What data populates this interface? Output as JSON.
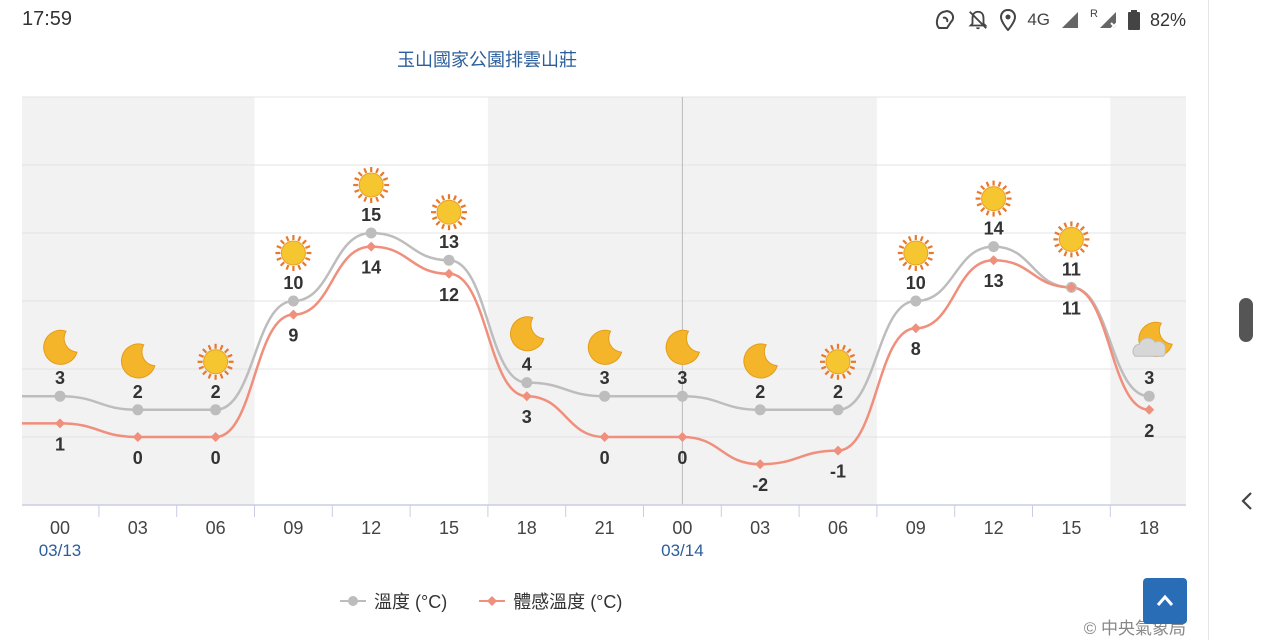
{
  "status_bar": {
    "time": "17:59",
    "network": "4G",
    "roaming": "R",
    "battery": "82%",
    "icons": [
      "nfc-icon",
      "notifications-off-icon",
      "location-icon",
      "signal-icon",
      "roaming-signal-icon",
      "battery-icon"
    ]
  },
  "chart_data": {
    "type": "line",
    "title": "玉山國家公園排雲山莊",
    "x": [
      "00",
      "03",
      "06",
      "09",
      "12",
      "15",
      "18",
      "21",
      "00",
      "03",
      "06",
      "09",
      "12",
      "15",
      "18"
    ],
    "date_labels": [
      {
        "index": 0,
        "label": "03/13"
      },
      {
        "index": 8,
        "label": "03/14"
      }
    ],
    "series": [
      {
        "name": "溫度 (°C)",
        "color": "#bdbdbd",
        "marker": "circle",
        "values": [
          3,
          2,
          2,
          10,
          15,
          13,
          4,
          3,
          3,
          2,
          2,
          10,
          14,
          11,
          3
        ]
      },
      {
        "name": "體感溫度 (°C)",
        "color": "#ef8f7c",
        "marker": "diamond",
        "values": [
          1,
          0,
          0,
          9,
          14,
          12,
          3,
          0,
          0,
          -2,
          -1,
          8,
          13,
          11,
          2
        ]
      }
    ],
    "weather_icons": [
      "moon",
      "moon",
      "sun",
      "sun",
      "sun",
      "sun",
      "moon",
      "moon",
      "moon",
      "moon",
      "sun",
      "sun",
      "sun",
      "sun",
      "cloudy-moon"
    ],
    "ylim": [
      -5,
      25
    ],
    "grid": true,
    "night_bands": [
      [
        0,
        2
      ],
      [
        6,
        8
      ],
      [
        8,
        10
      ],
      [
        14,
        14.5
      ]
    ],
    "legend_position": "bottom"
  },
  "scroll_top_button": {
    "icon": "chevron-up-icon"
  },
  "copyright": "© 中央氣象局",
  "side_panel": {
    "icon": "chevron-left-icon"
  }
}
